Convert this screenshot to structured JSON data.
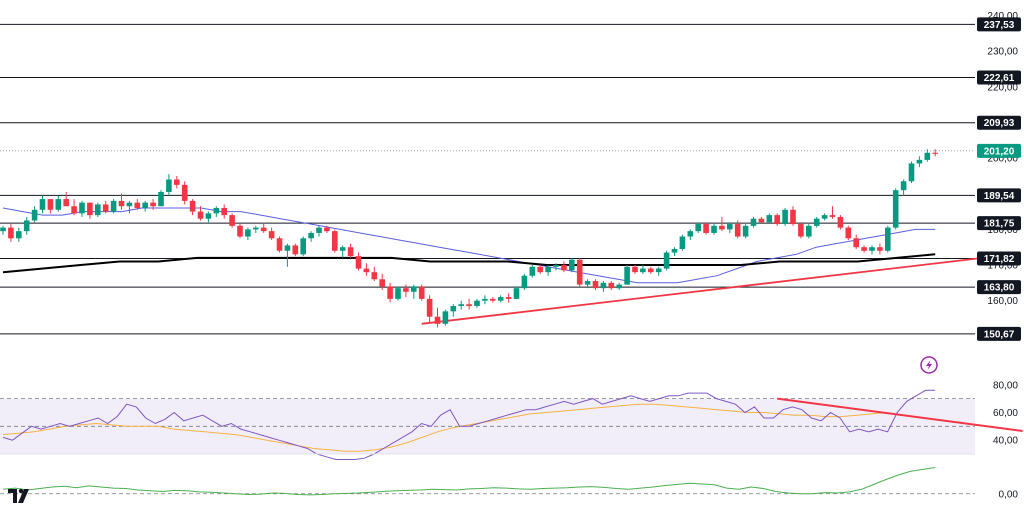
{
  "chart_data": {
    "type": "candlestick",
    "axis_price": {
      "ticks": [
        "240,00",
        "230,00",
        "220,00",
        "210,00",
        "200,00",
        "190,00",
        "180,00",
        "170,00",
        "160,00"
      ],
      "tick_values": [
        240,
        230,
        220,
        210,
        200,
        190,
        180,
        170,
        160
      ],
      "ylim": [
        148.4,
        241.0
      ]
    },
    "levels": [
      {
        "value": 237.53,
        "label": "237,53"
      },
      {
        "value": 222.61,
        "label": "222,61"
      },
      {
        "value": 209.93,
        "label": "209,93"
      },
      {
        "value": 189.54,
        "label": "189,54"
      },
      {
        "value": 181.75,
        "label": "181,75"
      },
      {
        "value": 171.82,
        "label": "171,82"
      },
      {
        "value": 163.8,
        "label": "163,80"
      },
      {
        "value": 150.67,
        "label": "150,67"
      }
    ],
    "current_price": {
      "value": 201.2,
      "label": "201,20",
      "color": "#089981"
    },
    "candles": [
      [
        179.5,
        181.0,
        178.5,
        180.5
      ],
      [
        180.5,
        181.5,
        176.5,
        177.5
      ],
      [
        177.5,
        180.5,
        176.5,
        179.5
      ],
      [
        179.5,
        183.5,
        178.5,
        182.5
      ],
      [
        182.5,
        186.5,
        182.0,
        185.5
      ],
      [
        185.5,
        189.5,
        184.5,
        188.5
      ],
      [
        188.5,
        188.5,
        184.5,
        185.5
      ],
      [
        185.5,
        189.5,
        185.0,
        188.5
      ],
      [
        188.5,
        190.5,
        187.0,
        186.5
      ],
      [
        186.5,
        188.5,
        184.0,
        184.5
      ],
      [
        184.5,
        188.0,
        183.5,
        187.5
      ],
      [
        187.5,
        187.5,
        183.0,
        184.0
      ],
      [
        184.0,
        187.5,
        183.5,
        187.0
      ],
      [
        187.0,
        188.0,
        184.5,
        185.0
      ],
      [
        185.0,
        188.5,
        184.5,
        188.0
      ],
      [
        188.0,
        190.0,
        185.5,
        186.5
      ],
      [
        186.5,
        188.0,
        184.5,
        187.5
      ],
      [
        187.5,
        188.5,
        185.5,
        186.0
      ],
      [
        186.0,
        188.0,
        185.0,
        187.5
      ],
      [
        187.5,
        188.5,
        185.5,
        186.5
      ],
      [
        186.5,
        191.0,
        186.5,
        190.5
      ],
      [
        190.5,
        195.5,
        189.5,
        194.0
      ],
      [
        194.0,
        195.0,
        191.5,
        192.5
      ],
      [
        192.5,
        193.5,
        187.0,
        188.0
      ],
      [
        188.0,
        188.5,
        184.0,
        185.0
      ],
      [
        185.0,
        186.5,
        182.5,
        183.0
      ],
      [
        183.0,
        185.0,
        182.0,
        184.5
      ],
      [
        184.5,
        186.5,
        183.5,
        186.0
      ],
      [
        186.0,
        187.0,
        183.0,
        184.0
      ],
      [
        184.0,
        184.5,
        180.5,
        181.0
      ],
      [
        181.0,
        181.5,
        177.5,
        178.0
      ],
      [
        178.0,
        180.5,
        177.0,
        180.0
      ],
      [
        180.0,
        181.0,
        179.0,
        180.5
      ],
      [
        180.5,
        181.5,
        179.0,
        179.5
      ],
      [
        179.5,
        180.5,
        177.0,
        177.5
      ],
      [
        177.5,
        178.0,
        173.5,
        174.0
      ],
      [
        174.0,
        176.0,
        169.5,
        175.5
      ],
      [
        175.5,
        176.0,
        172.5,
        173.0
      ],
      [
        173.0,
        178.0,
        172.5,
        177.5
      ],
      [
        177.5,
        179.5,
        176.5,
        179.0
      ],
      [
        179.0,
        181.0,
        178.0,
        180.5
      ],
      [
        180.5,
        181.0,
        179.0,
        179.5
      ],
      [
        179.5,
        180.0,
        173.5,
        174.0
      ],
      [
        174.0,
        175.5,
        172.0,
        175.0
      ],
      [
        175.0,
        176.0,
        172.0,
        172.5
      ],
      [
        172.5,
        173.5,
        168.5,
        169.0
      ],
      [
        169.0,
        170.5,
        167.0,
        168.0
      ],
      [
        168.0,
        169.5,
        165.5,
        166.0
      ],
      [
        166.0,
        167.5,
        163.0,
        164.0
      ],
      [
        164.0,
        165.0,
        159.5,
        160.5
      ],
      [
        160.5,
        164.0,
        160.0,
        163.5
      ],
      [
        163.5,
        164.5,
        161.0,
        162.5
      ],
      [
        162.5,
        164.5,
        160.5,
        164.0
      ],
      [
        164.0,
        164.5,
        160.0,
        160.5
      ],
      [
        160.5,
        161.5,
        154.0,
        155.5
      ],
      [
        155.5,
        158.0,
        152.5,
        153.5
      ],
      [
        153.5,
        157.5,
        153.0,
        157.0
      ],
      [
        157.0,
        159.0,
        155.5,
        158.5
      ],
      [
        158.5,
        160.0,
        157.5,
        159.0
      ],
      [
        159.0,
        160.5,
        157.5,
        158.5
      ],
      [
        158.5,
        160.5,
        158.0,
        160.0
      ],
      [
        160.0,
        161.5,
        159.0,
        160.5
      ],
      [
        160.5,
        161.0,
        159.5,
        160.0
      ],
      [
        160.0,
        161.5,
        159.5,
        161.0
      ],
      [
        161.0,
        162.0,
        159.5,
        160.5
      ],
      [
        160.5,
        164.0,
        160.5,
        163.5
      ],
      [
        163.5,
        167.5,
        163.0,
        167.0
      ],
      [
        167.0,
        170.0,
        166.5,
        169.5
      ],
      [
        169.5,
        170.0,
        167.5,
        168.0
      ],
      [
        168.0,
        170.0,
        167.0,
        169.5
      ],
      [
        169.5,
        170.5,
        168.5,
        170.0
      ],
      [
        170.0,
        171.0,
        168.0,
        168.5
      ],
      [
        168.5,
        172.0,
        168.0,
        171.5
      ],
      [
        171.5,
        172.0,
        164.0,
        164.5
      ],
      [
        164.5,
        166.0,
        163.5,
        165.5
      ],
      [
        165.5,
        166.0,
        163.0,
        163.5
      ],
      [
        163.5,
        165.5,
        162.5,
        165.0
      ],
      [
        165.0,
        165.5,
        163.0,
        163.5
      ],
      [
        163.5,
        165.0,
        163.0,
        164.5
      ],
      [
        164.5,
        170.0,
        164.5,
        169.5
      ],
      [
        169.5,
        170.0,
        167.5,
        168.0
      ],
      [
        168.0,
        170.0,
        167.5,
        169.0
      ],
      [
        169.0,
        169.5,
        167.5,
        168.0
      ],
      [
        168.0,
        169.5,
        167.0,
        169.0
      ],
      [
        169.0,
        174.0,
        168.5,
        173.5
      ],
      [
        173.5,
        175.0,
        172.5,
        174.5
      ],
      [
        174.5,
        178.5,
        174.0,
        178.0
      ],
      [
        178.0,
        180.0,
        177.0,
        179.5
      ],
      [
        179.5,
        182.0,
        179.0,
        181.5
      ],
      [
        181.5,
        182.0,
        178.5,
        179.0
      ],
      [
        179.0,
        181.5,
        178.5,
        181.0
      ],
      [
        181.0,
        183.5,
        179.5,
        180.0
      ],
      [
        180.0,
        182.0,
        179.0,
        181.5
      ],
      [
        181.5,
        182.5,
        177.5,
        178.0
      ],
      [
        178.0,
        181.5,
        177.5,
        181.0
      ],
      [
        181.0,
        183.5,
        180.5,
        183.0
      ],
      [
        183.0,
        183.5,
        181.5,
        182.0
      ],
      [
        182.0,
        184.5,
        181.5,
        184.0
      ],
      [
        184.0,
        184.5,
        181.0,
        181.5
      ],
      [
        181.5,
        186.0,
        181.0,
        185.5
      ],
      [
        185.5,
        186.5,
        181.0,
        181.5
      ],
      [
        181.5,
        182.0,
        177.5,
        178.0
      ],
      [
        178.0,
        181.5,
        177.5,
        181.0
      ],
      [
        181.0,
        183.5,
        180.5,
        183.0
      ],
      [
        183.0,
        184.5,
        182.5,
        184.0
      ],
      [
        184.0,
        186.5,
        183.0,
        183.5
      ],
      [
        183.5,
        184.0,
        180.0,
        180.5
      ],
      [
        180.5,
        181.0,
        177.0,
        177.5
      ],
      [
        177.5,
        178.5,
        174.5,
        175.0
      ],
      [
        175.0,
        175.5,
        173.5,
        174.0
      ],
      [
        174.0,
        175.5,
        173.0,
        175.0
      ],
      [
        175.0,
        176.0,
        173.0,
        174.0
      ],
      [
        174.0,
        181.0,
        173.5,
        180.5
      ],
      [
        180.5,
        191.5,
        180.0,
        191.0
      ],
      [
        191.0,
        194.0,
        189.5,
        193.5
      ],
      [
        193.5,
        199.0,
        193.0,
        198.5
      ],
      [
        198.5,
        200.5,
        197.5,
        199.5
      ],
      [
        199.5,
        202.5,
        199.0,
        201.5
      ],
      [
        201.5,
        202.5,
        200.5,
        201.2
      ]
    ],
    "ma_blue": [
      186,
      185,
      184,
      184,
      185,
      185,
      185,
      186,
      186,
      186,
      186,
      185,
      185,
      184,
      183,
      182,
      181,
      180,
      179,
      178,
      177,
      176,
      175,
      174,
      173,
      172,
      171,
      170,
      169,
      168,
      167,
      166,
      165,
      165,
      165,
      166,
      167,
      169,
      171,
      172,
      173,
      175,
      176,
      177,
      178,
      179,
      180,
      180
    ],
    "ma_black": [
      168,
      169,
      170,
      171,
      171,
      172,
      172,
      172,
      172,
      172,
      172,
      171,
      171,
      171,
      170,
      170,
      170,
      170,
      170,
      170,
      171,
      171,
      171,
      172,
      173
    ],
    "trendlines": [
      {
        "from": [
          53,
          153.5
        ],
        "to": [
          124,
          172.0
        ],
        "color": "#f23645"
      }
    ],
    "rsi": {
      "ticks": [
        "80,00",
        "60,00",
        "40,00"
      ],
      "tick_values": [
        80,
        60,
        40
      ],
      "ylim": [
        30,
        82
      ],
      "band": [
        30,
        70
      ],
      "dashed": [
        70,
        50
      ],
      "line": [
        42,
        40,
        45,
        50,
        48,
        50,
        52,
        50,
        52,
        54,
        56,
        52,
        57,
        66,
        64,
        56,
        52,
        55,
        60,
        54,
        56,
        58,
        54,
        50,
        52,
        48,
        46,
        44,
        42,
        40,
        38,
        36,
        34,
        30,
        28,
        26,
        26,
        26,
        27,
        30,
        34,
        38,
        42,
        46,
        52,
        50,
        58,
        62,
        50,
        50,
        52,
        54,
        56,
        58,
        60,
        62,
        62,
        64,
        66,
        68,
        66,
        68,
        70,
        66,
        68,
        70,
        72,
        70,
        68,
        70,
        72,
        72,
        74,
        74,
        74,
        70,
        68,
        66,
        60,
        64,
        56,
        56,
        62,
        64,
        62,
        56,
        54,
        60,
        56,
        46,
        48,
        46,
        48,
        46,
        60,
        68,
        72,
        76,
        76
      ],
      "ma": [
        44,
        45,
        46,
        48,
        50,
        51,
        52,
        51,
        50,
        50,
        50,
        48,
        47,
        46,
        45,
        44,
        42,
        40,
        38,
        36,
        34,
        33,
        32,
        32,
        33,
        35,
        38,
        42,
        46,
        49,
        51,
        53,
        55,
        57,
        59,
        60,
        61,
        62,
        63,
        64,
        65,
        66,
        66,
        65,
        64,
        63,
        62,
        61,
        60,
        60,
        59,
        58,
        58,
        57,
        57,
        58,
        59,
        60
      ],
      "trendline": {
        "from": [
          98,
          70
        ],
        "to": [
          124,
          49.5
        ],
        "color": "#f23645"
      }
    },
    "momentum": {
      "ticks": [
        "0,00"
      ],
      "tick_values": [
        0
      ],
      "ylim": [
        -3,
        9
      ],
      "line": [
        1.2,
        1.5,
        1.0,
        1.4,
        1.8,
        2.0,
        1.6,
        2.1,
        1.8,
        1.5,
        1.4,
        1.0,
        0.8,
        0.6,
        0.9,
        0.8,
        0.5,
        0.4,
        0.2,
        0.0,
        -0.2,
        -0.1,
        0.2,
        0.1,
        -0.2,
        -0.3,
        -0.2,
        0.0,
        0.1,
        0.2,
        0.4,
        0.6,
        0.8,
        0.9,
        1.0,
        1.2,
        1.1,
        1.0,
        1.3,
        1.4,
        1.6,
        1.5,
        1.3,
        1.2,
        1.4,
        1.5,
        1.6,
        1.8,
        1.9,
        1.7,
        1.4,
        1.2,
        1.5,
        1.8,
        2.2,
        2.5,
        2.8,
        2.6,
        2.4,
        1.5,
        1.2,
        1.8,
        1.4,
        0.6,
        0.2,
        0.0,
        0.0,
        0.3,
        0.2,
        0.5,
        1.2,
        2.5,
        3.8,
        5.0,
        6.0,
        6.5,
        7.0
      ]
    }
  },
  "logo": {
    "text": "TV",
    "icon": "tradingview-logo"
  },
  "alert_icon": {
    "icon": "lightning-icon",
    "color": "#9c27b0"
  }
}
